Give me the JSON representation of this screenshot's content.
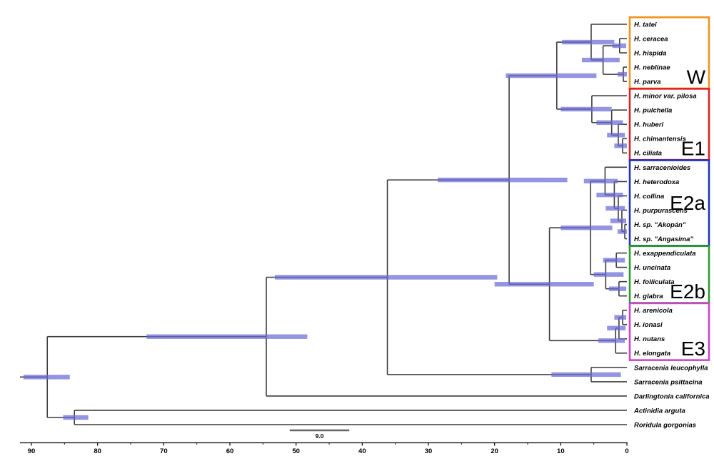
{
  "figure": {
    "type": "phylogenetic-chronogram",
    "description": "Time-calibrated phylogeny of Heliamphora and outgroups with node age bars and clade boxes",
    "background": "#ffffff"
  },
  "colors": {
    "branch": "#3c3c3c",
    "node_bar": "#6b6bd6",
    "axis": "#000000",
    "scale_bar": "#666666",
    "text": "#000000"
  },
  "axis": {
    "min": 0,
    "max": 90,
    "major_ticks": [
      90,
      80,
      70,
      60,
      50,
      40,
      30,
      20,
      10,
      0
    ],
    "minor_tick_step": 5
  },
  "scale_bar": {
    "label": "9.0",
    "length": 9.0
  },
  "clades": [
    {
      "label": "W",
      "color": "#F0941E",
      "tip_start": 0,
      "tip_end": 4,
      "label_pos": "bottom"
    },
    {
      "label": "E1",
      "color": "#DD2222",
      "tip_start": 5,
      "tip_end": 9,
      "label_pos": "bottom"
    },
    {
      "label": "E2a",
      "color": "#2233BB",
      "tip_start": 10,
      "tip_end": 15,
      "label_pos": "middle"
    },
    {
      "label": "E2b",
      "color": "#2E9B2E",
      "tip_start": 16,
      "tip_end": 19,
      "label_pos": "bottom"
    },
    {
      "label": "E3",
      "color": "#CC44CC",
      "tip_start": 20,
      "tip_end": 23,
      "label_pos": "bottom"
    }
  ],
  "tree": {
    "age": 87.6,
    "bar": [
      91.2,
      84.2
    ],
    "children": [
      {
        "age": 54.5,
        "bar": [
          72.6,
          48.3
        ],
        "children": [
          {
            "age": 36.2,
            "bar": [
              53.2,
              19.6
            ],
            "children": [
              {
                "age": 17.8,
                "bar": [
                  28.6,
                  9.0
                ],
                "children": [
                  {
                    "age": 10.6,
                    "bar": [
                      18.3,
                      4.6
                    ],
                    "children": [
                      {
                        "age": 5.4,
                        "bar": [
                          9.8,
                          1.9
                        ],
                        "children": [
                          {
                            "tip": "H. tatei"
                          },
                          {
                            "age": 3.6,
                            "bar": [
                              6.8,
                              1.1
                            ],
                            "children": [
                              {
                                "age": 1.1,
                                "bar": [
                                  2.2,
                                  0.1
                                ],
                                "children": [
                                  {
                                    "tip": "H. ceracea"
                                  },
                                  {
                                    "tip": "H. hispida"
                                  }
                                ]
                              },
                              {
                                "age": 0.54,
                                "bar": [
                                  1.4,
                                  0.0
                                ],
                                "children": [
                                  {
                                    "tip": "H. neblinae"
                                  },
                                  {
                                    "tip": "H. parva"
                                  }
                                ]
                              }
                            ]
                          }
                        ]
                      },
                      {
                        "age": 5.3,
                        "bar": [
                          10.0,
                          2.3
                        ],
                        "children": [
                          {
                            "tip": "H. minor var. pilosa"
                          },
                          {
                            "age": 2.3,
                            "bar": [
                              4.6,
                              0.6
                            ],
                            "children": [
                              {
                                "tip": "H. pulchella"
                              },
                              {
                                "age": 1.3,
                                "bar": [
                                  3.0,
                                  0.3
                                ],
                                "children": [
                                  {
                                    "tip": "H. huberi"
                                  },
                                  {
                                    "age": 0.65,
                                    "bar": [
                                      1.9,
                                      0.0
                                    ],
                                    "children": [
                                      {
                                        "tip": "H. chimantensis"
                                      },
                                      {
                                        "tip": "H. ciliata"
                                      }
                                    ]
                                  }
                                ]
                              }
                            ]
                          }
                        ]
                      }
                    ]
                  },
                  {
                    "age": 11.7,
                    "bar": [
                      20.0,
                      5.0
                    ],
                    "children": [
                      {
                        "age": 5.5,
                        "bar": [
                          10.0,
                          2.2
                        ],
                        "children": [
                          {
                            "age": 3.3,
                            "bar": [
                              6.5,
                              1.4
                            ],
                            "children": [
                              {
                                "tip": "H. sarracenioides"
                              },
                              {
                                "age": 1.9,
                                "bar": [
                                  4.6,
                                  0.6
                                ],
                                "children": [
                                  {
                                    "tip": "H. heterodoxa"
                                  },
                                  {
                                    "age": 1.3,
                                    "bar": [
                                      3.2,
                                      0.3
                                    ],
                                    "children": [
                                      {
                                        "tip": "H. collina"
                                      },
                                      {
                                        "age": 0.76,
                                        "bar": [
                                          2.5,
                                          0.1
                                        ],
                                        "children": [
                                          {
                                            "tip": "H. purpurascens"
                                          },
                                          {
                                            "age": 0.32,
                                            "bar": [
                                              1.4,
                                              0.0
                                            ],
                                            "children": [
                                              {
                                                "tip": "H. sp. \"Akopán\""
                                              },
                                              {
                                                "tip": "H. sp. \"Angasima\""
                                              }
                                            ]
                                          }
                                        ]
                                      }
                                    ]
                                  }
                                ]
                              }
                            ]
                          },
                          {
                            "age": 3.2,
                            "bar": [
                              5.0,
                              0.5
                            ],
                            "children": [
                              {
                                "age": 1.6,
                                "bar": [
                                  3.6,
                                  0.3
                                ],
                                "children": [
                                  {
                                    "tip": "H. exappendiculata"
                                  },
                                  {
                                    "tip": "H. uncinata"
                                  }
                                ]
                              },
                              {
                                "age": 1.2,
                                "bar": [
                                  2.7,
                                  0.1
                                ],
                                "children": [
                                  {
                                    "tip": "H. folliculata"
                                  },
                                  {
                                    "tip": "H. glabra"
                                  }
                                ]
                              }
                            ]
                          }
                        ]
                      },
                      {
                        "age": 1.7,
                        "bar": [
                          4.3,
                          0.3
                        ],
                        "children": [
                          {
                            "age": 1.2,
                            "bar": [
                              3.0,
                              0.2
                            ],
                            "children": [
                              {
                                "age": 0.65,
                                "bar": [
                                  1.9,
                                  0.1
                                ],
                                "children": [
                                  {
                                    "tip": "H. arenicola"
                                  },
                                  {
                                    "tip": "H. ionasi"
                                  }
                                ]
                              },
                              {
                                "tip": "H. nutans"
                              }
                            ]
                          },
                          {
                            "tip": "H. elongata"
                          }
                        ]
                      }
                    ]
                  }
                ]
              },
              {
                "age": 5.4,
                "bar": [
                  11.4,
                  0.9
                ],
                "children": [
                  {
                    "tip": "Sarracenia leucophylla"
                  },
                  {
                    "tip": "Sarracenia psittacina"
                  }
                ]
              }
            ]
          },
          {
            "tip": "Darlingtonia californica"
          }
        ]
      },
      {
        "age": 83.5,
        "bar": [
          85.2,
          81.4
        ],
        "children": [
          {
            "tip": "Actinidia arguta"
          },
          {
            "tip": "Roridula gorgonias"
          }
        ]
      }
    ]
  }
}
